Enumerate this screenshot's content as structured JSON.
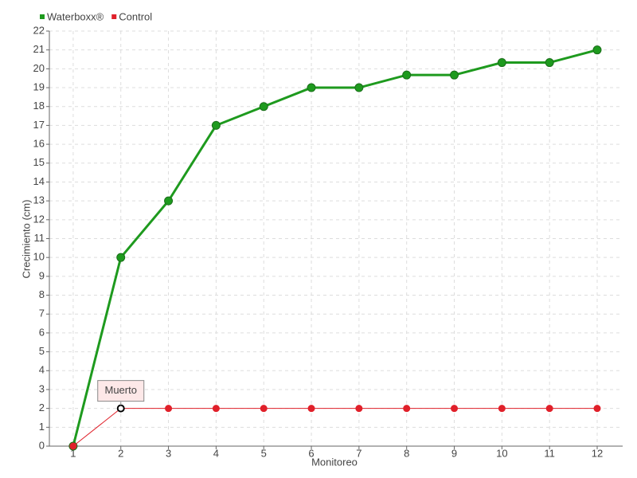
{
  "chart_data": {
    "type": "line",
    "x": [
      1,
      2,
      3,
      4,
      5,
      6,
      7,
      8,
      9,
      10,
      11,
      12
    ],
    "xlim": [
      0.5,
      12
    ],
    "xticks": [
      1,
      2,
      3,
      4,
      5,
      6,
      7,
      8,
      9,
      10,
      11,
      12
    ],
    "ylim": [
      0,
      22
    ],
    "yticks": [
      0,
      1,
      2,
      3,
      4,
      5,
      6,
      7,
      8,
      9,
      10,
      11,
      12,
      13,
      14,
      15,
      16,
      17,
      18,
      19,
      20,
      21,
      22
    ],
    "xlabel": "Monitoreo",
    "ylabel": "Crecimiento (cm)",
    "grid": true,
    "legend": "top-left",
    "series": [
      {
        "name": "Waterboxx®",
        "color": "#1e9a1e",
        "values": [
          0,
          10,
          13,
          17,
          18,
          19,
          19,
          19.67,
          19.67,
          20.33,
          20.33,
          21
        ]
      },
      {
        "name": "Control",
        "color": "#e0202a",
        "values": [
          0,
          2,
          2,
          2,
          2,
          2,
          2,
          2,
          2,
          2,
          2,
          2
        ]
      }
    ],
    "annotations": [
      {
        "text": "Muerto"
      }
    ]
  }
}
